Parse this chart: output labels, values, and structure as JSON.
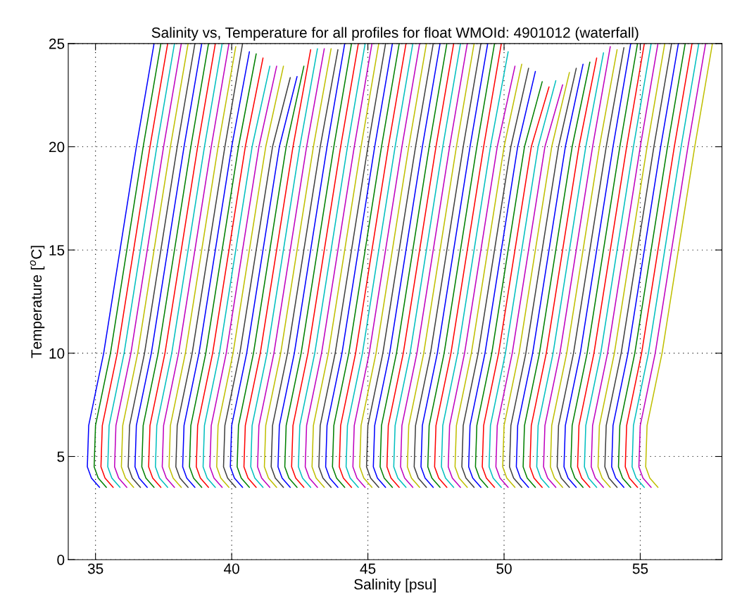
{
  "chart_data": {
    "type": "line",
    "title": "Salinity vs, Temperature for all profiles for float WMOId: 4901012 (waterfall)",
    "xlabel": "Salinity [psu]",
    "ylabel": "Temperature [$^{o}$C]",
    "xlim": [
      34,
      58
    ],
    "xticks": [
      35,
      40,
      45,
      50,
      55
    ],
    "ylim": [
      0,
      25
    ],
    "yticks": [
      0,
      5,
      10,
      15,
      20,
      25
    ],
    "grid": true,
    "line_style": "solid",
    "series": [
      {
        "color": "#0000ff",
        "x": [
          35.15,
          34.85,
          34.7,
          34.75,
          35.3,
          36.5,
          37.15
        ],
        "values": [
          3.5,
          3.95,
          4.5,
          6.5,
          10,
          20,
          25
        ]
      },
      {
        "color": "#008000",
        "x": [
          35.4,
          35.1,
          34.95,
          35,
          35.55,
          36.75,
          37.4
        ],
        "values": [
          3.5,
          3.95,
          4.5,
          6.5,
          10,
          20,
          25
        ]
      },
      {
        "color": "#ff0000",
        "x": [
          35.65,
          35.35,
          35.2,
          35.25,
          35.8,
          37,
          37.65
        ],
        "values": [
          3.5,
          3.95,
          4.5,
          6.5,
          10,
          20,
          25
        ]
      },
      {
        "color": "#00bfbf",
        "x": [
          35.9,
          35.6,
          35.45,
          35.5,
          36.05,
          37.25,
          37.9
        ],
        "values": [
          3.5,
          3.95,
          4.5,
          6.5,
          10,
          20,
          25
        ]
      },
      {
        "color": "#bf00bf",
        "x": [
          36.15,
          35.85,
          35.7,
          35.75,
          36.3,
          37.5,
          38.15
        ],
        "values": [
          3.5,
          3.95,
          4.5,
          6.5,
          10,
          20,
          25
        ]
      },
      {
        "color": "#bfbf00",
        "x": [
          36.4,
          36.1,
          35.95,
          36,
          36.55,
          37.75,
          38.4
        ],
        "values": [
          3.5,
          3.95,
          4.5,
          6.5,
          10,
          20,
          25
        ]
      },
      {
        "color": "#404040",
        "x": [
          36.65,
          36.35,
          36.2,
          36.25,
          36.8,
          38,
          38.65
        ],
        "values": [
          3.5,
          3.95,
          4.5,
          6.5,
          10,
          20,
          25
        ]
      },
      {
        "color": "#0000ff",
        "x": [
          36.9,
          36.6,
          36.45,
          36.5,
          37.05,
          38.25,
          38.9
        ],
        "values": [
          3.5,
          3.95,
          4.5,
          6.5,
          10,
          20,
          25
        ]
      },
      {
        "color": "#008000",
        "x": [
          37.15,
          36.85,
          36.7,
          36.75,
          37.3,
          38.5,
          39.15
        ],
        "values": [
          3.5,
          3.95,
          4.5,
          6.5,
          10,
          20,
          25
        ]
      },
      {
        "color": "#ff0000",
        "x": [
          37.4,
          37.1,
          36.95,
          37,
          37.55,
          38.75,
          39.4
        ],
        "values": [
          3.5,
          3.95,
          4.5,
          6.5,
          10,
          20,
          25
        ]
      },
      {
        "color": "#00bfbf",
        "x": [
          37.65,
          37.35,
          37.2,
          37.25,
          37.8,
          39,
          39.65
        ],
        "values": [
          3.5,
          3.95,
          4.5,
          6.5,
          10,
          20,
          25
        ]
      },
      {
        "color": "#bf00bf",
        "x": [
          37.9,
          37.6,
          37.45,
          37.5,
          38.05,
          39.25,
          39.9
        ],
        "values": [
          3.5,
          3.95,
          4.5,
          6.5,
          10,
          20,
          25
        ]
      },
      {
        "color": "#bfbf00",
        "x": [
          38.15,
          37.85,
          37.7,
          37.75,
          38.3,
          39.5,
          40.15
        ],
        "values": [
          3.5,
          3.95,
          4.5,
          6.5,
          10,
          20,
          24.85
        ]
      },
      {
        "color": "#404040",
        "x": [
          38.4,
          38.1,
          37.95,
          38,
          38.55,
          39.75,
          40.4
        ],
        "values": [
          3.5,
          3.95,
          4.5,
          6.5,
          10,
          20,
          25
        ]
      },
      {
        "color": "#0000ff",
        "x": [
          38.65,
          38.35,
          38.2,
          38.25,
          38.8,
          40,
          40.65
        ],
        "values": [
          3.5,
          3.95,
          4.5,
          6.5,
          10,
          20,
          24.6
        ]
      },
      {
        "color": "#008000",
        "x": [
          38.9,
          38.6,
          38.45,
          38.5,
          39.05,
          40.25,
          40.9
        ],
        "values": [
          3.5,
          3.95,
          4.5,
          6.5,
          10,
          20,
          24.5
        ]
      },
      {
        "color": "#ff0000",
        "x": [
          39.15,
          38.85,
          38.7,
          38.75,
          39.3,
          40.5,
          41.15
        ],
        "values": [
          3.5,
          3.95,
          4.5,
          6.5,
          10,
          20,
          24.3
        ]
      },
      {
        "color": "#00bfbf",
        "x": [
          39.4,
          39.1,
          38.95,
          39,
          39.55,
          40.75,
          41.4
        ],
        "values": [
          3.5,
          3.95,
          4.5,
          6.5,
          10,
          20,
          23.9
        ]
      },
      {
        "color": "#bf00bf",
        "x": [
          39.65,
          39.35,
          39.2,
          39.25,
          39.8,
          41,
          41.65
        ],
        "values": [
          3.5,
          3.95,
          4.5,
          6.5,
          10,
          20,
          23.9
        ]
      },
      {
        "color": "#bfbf00",
        "x": [
          39.9,
          39.6,
          39.45,
          39.5,
          40.05,
          41.25,
          41.9
        ],
        "values": [
          3.5,
          3.95,
          4.5,
          6.5,
          10,
          20,
          23.9
        ]
      },
      {
        "color": "#404040",
        "x": [
          40.15,
          39.85,
          39.7,
          39.75,
          40.3,
          41.5,
          42.15
        ],
        "values": [
          3.5,
          3.95,
          4.5,
          6.5,
          10,
          20,
          23.35
        ]
      },
      {
        "color": "#0000ff",
        "x": [
          40.4,
          40.1,
          39.95,
          40,
          40.55,
          41.75,
          42.4
        ],
        "values": [
          3.5,
          3.95,
          4.5,
          6.5,
          10,
          20,
          23.4
        ]
      },
      {
        "color": "#008000",
        "x": [
          40.65,
          40.35,
          40.2,
          40.25,
          40.8,
          42,
          42.65
        ],
        "values": [
          3.5,
          3.95,
          4.5,
          6.5,
          10,
          20,
          23.9
        ]
      },
      {
        "color": "#ff0000",
        "x": [
          40.9,
          40.6,
          40.45,
          40.5,
          41.05,
          42.25,
          42.9
        ],
        "values": [
          3.5,
          3.95,
          4.5,
          6.5,
          10,
          20,
          24.7
        ]
      },
      {
        "color": "#00bfbf",
        "x": [
          41.15,
          40.85,
          40.7,
          40.75,
          41.3,
          42.5,
          43.15
        ],
        "values": [
          3.5,
          3.95,
          4.5,
          6.5,
          10,
          20,
          24.75
        ]
      },
      {
        "color": "#bf00bf",
        "x": [
          41.4,
          41.1,
          40.95,
          41,
          41.55,
          42.75,
          43.4
        ],
        "values": [
          3.5,
          3.95,
          4.5,
          6.5,
          10,
          20,
          24.75
        ]
      },
      {
        "color": "#bfbf00",
        "x": [
          41.65,
          41.35,
          41.2,
          41.25,
          41.8,
          43,
          43.65
        ],
        "values": [
          3.5,
          3.95,
          4.5,
          6.5,
          10,
          20,
          24.75
        ]
      },
      {
        "color": "#404040",
        "x": [
          41.9,
          41.6,
          41.45,
          41.5,
          42.05,
          43.25,
          43.9
        ],
        "values": [
          3.5,
          3.95,
          4.5,
          6.5,
          10,
          20,
          24.7
        ]
      },
      {
        "color": "#0000ff",
        "x": [
          42.15,
          41.85,
          41.7,
          41.75,
          42.3,
          43.5,
          44.15
        ],
        "values": [
          3.5,
          3.95,
          4.5,
          6.5,
          10,
          20,
          25
        ]
      },
      {
        "color": "#008000",
        "x": [
          42.4,
          42.1,
          41.95,
          42,
          42.55,
          43.75,
          44.4
        ],
        "values": [
          3.5,
          3.95,
          4.5,
          6.5,
          10,
          20,
          25
        ]
      },
      {
        "color": "#ff0000",
        "x": [
          42.65,
          42.35,
          42.2,
          42.25,
          42.8,
          44,
          44.65
        ],
        "values": [
          3.5,
          3.95,
          4.5,
          6.5,
          10,
          20,
          25
        ]
      },
      {
        "color": "#00bfbf",
        "x": [
          42.9,
          42.6,
          42.45,
          42.5,
          43.05,
          44.25,
          44.9
        ],
        "values": [
          3.5,
          3.95,
          4.5,
          6.5,
          10,
          20,
          25
        ]
      },
      {
        "color": "#bf00bf",
        "x": [
          43.15,
          42.85,
          42.7,
          42.75,
          43.3,
          44.5,
          45.15
        ],
        "values": [
          3.5,
          3.95,
          4.5,
          6.5,
          10,
          20,
          25
        ]
      },
      {
        "color": "#bfbf00",
        "x": [
          43.4,
          43.1,
          42.95,
          43,
          43.55,
          44.75,
          45.4
        ],
        "values": [
          3.5,
          3.95,
          4.5,
          6.5,
          10,
          20,
          25
        ]
      },
      {
        "color": "#404040",
        "x": [
          43.65,
          43.35,
          43.2,
          43.25,
          43.8,
          45,
          45.65
        ],
        "values": [
          3.5,
          3.95,
          4.5,
          6.5,
          10,
          20,
          25
        ]
      },
      {
        "color": "#0000ff",
        "x": [
          43.9,
          43.6,
          43.45,
          43.5,
          44.05,
          45.25,
          45.9
        ],
        "values": [
          3.5,
          3.95,
          4.5,
          6.5,
          10,
          20,
          25
        ]
      },
      {
        "color": "#008000",
        "x": [
          44.15,
          43.85,
          43.7,
          43.75,
          44.3,
          45.5,
          46.15
        ],
        "values": [
          3.5,
          3.95,
          4.5,
          6.5,
          10,
          20,
          25
        ]
      },
      {
        "color": "#ff0000",
        "x": [
          44.4,
          44.1,
          43.95,
          44,
          44.55,
          45.75,
          46.4
        ],
        "values": [
          3.5,
          3.95,
          4.5,
          6.5,
          10,
          20,
          25
        ]
      },
      {
        "color": "#00bfbf",
        "x": [
          44.65,
          44.35,
          44.2,
          44.25,
          44.8,
          46,
          46.65
        ],
        "values": [
          3.5,
          3.95,
          4.5,
          6.5,
          10,
          20,
          25
        ]
      },
      {
        "color": "#bf00bf",
        "x": [
          44.9,
          44.6,
          44.45,
          44.5,
          45.05,
          46.25,
          46.9
        ],
        "values": [
          3.5,
          3.95,
          4.5,
          6.5,
          10,
          20,
          25
        ]
      },
      {
        "color": "#bfbf00",
        "x": [
          45.15,
          44.85,
          44.7,
          44.75,
          45.3,
          46.5,
          47.15
        ],
        "values": [
          3.5,
          3.95,
          4.5,
          6.5,
          10,
          20,
          25
        ]
      },
      {
        "color": "#404040",
        "x": [
          45.4,
          45.1,
          44.95,
          45,
          45.55,
          46.75,
          47.4
        ],
        "values": [
          3.5,
          3.95,
          4.5,
          6.5,
          10,
          20,
          25
        ]
      },
      {
        "color": "#0000ff",
        "x": [
          45.65,
          45.35,
          45.2,
          45.25,
          45.8,
          47,
          47.65
        ],
        "values": [
          3.5,
          3.95,
          4.5,
          6.5,
          10,
          20,
          25
        ]
      },
      {
        "color": "#008000",
        "x": [
          45.9,
          45.6,
          45.45,
          45.5,
          46.05,
          47.25,
          47.9
        ],
        "values": [
          3.5,
          3.95,
          4.5,
          6.5,
          10,
          20,
          25
        ]
      },
      {
        "color": "#ff0000",
        "x": [
          46.15,
          45.85,
          45.7,
          45.75,
          46.3,
          47.5,
          48.15
        ],
        "values": [
          3.5,
          3.95,
          4.5,
          6.5,
          10,
          20,
          25
        ]
      },
      {
        "color": "#00bfbf",
        "x": [
          46.4,
          46.1,
          45.95,
          46,
          46.55,
          47.75,
          48.4
        ],
        "values": [
          3.5,
          3.95,
          4.5,
          6.5,
          10,
          20,
          25
        ]
      },
      {
        "color": "#bf00bf",
        "x": [
          46.65,
          46.35,
          46.2,
          46.25,
          46.8,
          48,
          48.65
        ],
        "values": [
          3.5,
          3.95,
          4.5,
          6.5,
          10,
          20,
          25
        ]
      },
      {
        "color": "#bfbf00",
        "x": [
          46.9,
          46.6,
          46.45,
          46.5,
          47.05,
          48.25,
          48.9
        ],
        "values": [
          3.5,
          3.95,
          4.5,
          6.5,
          10,
          20,
          25
        ]
      },
      {
        "color": "#404040",
        "x": [
          47.15,
          46.85,
          46.7,
          46.75,
          47.3,
          48.5,
          49.15
        ],
        "values": [
          3.5,
          3.95,
          4.5,
          6.5,
          10,
          20,
          25
        ]
      },
      {
        "color": "#0000ff",
        "x": [
          47.4,
          47.1,
          46.95,
          47,
          47.55,
          48.75,
          49.4
        ],
        "values": [
          3.5,
          3.95,
          4.5,
          6.5,
          10,
          20,
          25
        ]
      },
      {
        "color": "#008000",
        "x": [
          47.65,
          47.35,
          47.2,
          47.25,
          47.8,
          49,
          49.65
        ],
        "values": [
          3.5,
          3.95,
          4.5,
          6.5,
          10,
          20,
          25
        ]
      },
      {
        "color": "#ff0000",
        "x": [
          47.9,
          47.6,
          47.45,
          47.5,
          48.05,
          49.25,
          49.9
        ],
        "values": [
          3.5,
          3.95,
          4.5,
          6.5,
          10,
          20,
          25
        ]
      },
      {
        "color": "#00bfbf",
        "x": [
          48.15,
          47.85,
          47.7,
          47.75,
          48.3,
          49.5,
          50.15
        ],
        "values": [
          3.5,
          3.95,
          4.5,
          6.5,
          10,
          20,
          24.6
        ]
      },
      {
        "color": "#bf00bf",
        "x": [
          48.4,
          48.1,
          47.95,
          48,
          48.55,
          49.75,
          50.4
        ],
        "values": [
          3.5,
          3.95,
          4.5,
          6.5,
          10,
          20,
          23.9
        ]
      },
      {
        "color": "#bfbf00",
        "x": [
          48.65,
          48.35,
          48.2,
          48.25,
          48.8,
          50,
          50.65
        ],
        "values": [
          3.5,
          3.95,
          4.5,
          6.5,
          10,
          20,
          24
        ]
      },
      {
        "color": "#404040",
        "x": [
          48.9,
          48.6,
          48.45,
          48.5,
          49.05,
          50.25,
          50.9
        ],
        "values": [
          3.5,
          3.95,
          4.5,
          6.5,
          10,
          20,
          23.8
        ]
      },
      {
        "color": "#0000ff",
        "x": [
          49.15,
          48.85,
          48.7,
          48.75,
          49.3,
          50.5,
          51.15
        ],
        "values": [
          3.5,
          3.95,
          4.5,
          6.5,
          10,
          20,
          23.65
        ]
      },
      {
        "color": "#008000",
        "x": [
          49.4,
          49.1,
          48.95,
          49,
          49.55,
          50.75,
          51.4
        ],
        "values": [
          3.5,
          3.95,
          4.5,
          6.5,
          10,
          20,
          23.15
        ]
      },
      {
        "color": "#ff0000",
        "x": [
          49.65,
          49.35,
          49.2,
          49.25,
          49.8,
          51,
          51.65
        ],
        "values": [
          3.5,
          3.95,
          4.5,
          6.5,
          10,
          20,
          22.9
        ]
      },
      {
        "color": "#00bfbf",
        "x": [
          49.9,
          49.6,
          49.45,
          49.5,
          50.05,
          51.25,
          51.9
        ],
        "values": [
          3.5,
          3.95,
          4.5,
          6.5,
          10,
          20,
          23.2
        ]
      },
      {
        "color": "#bf00bf",
        "x": [
          50.15,
          49.85,
          49.7,
          49.75,
          50.3,
          51.5,
          52.15
        ],
        "values": [
          3.5,
          3.95,
          4.5,
          6.5,
          10,
          20,
          23
        ]
      },
      {
        "color": "#bfbf00",
        "x": [
          50.4,
          50.1,
          49.95,
          50,
          50.55,
          51.75,
          52.4
        ],
        "values": [
          3.5,
          3.95,
          4.5,
          6.5,
          10,
          20,
          23.6
        ]
      },
      {
        "color": "#404040",
        "x": [
          50.65,
          50.35,
          50.2,
          50.25,
          50.8,
          52,
          52.65
        ],
        "values": [
          3.5,
          3.95,
          4.5,
          6.5,
          10,
          20,
          23.8
        ]
      },
      {
        "color": "#0000ff",
        "x": [
          50.9,
          50.6,
          50.45,
          50.5,
          51.05,
          52.25,
          52.9
        ],
        "values": [
          3.5,
          3.95,
          4.5,
          6.5,
          10,
          20,
          24
        ]
      },
      {
        "color": "#008000",
        "x": [
          51.15,
          50.85,
          50.7,
          50.75,
          51.3,
          52.5,
          53.15
        ],
        "values": [
          3.5,
          3.95,
          4.5,
          6.5,
          10,
          20,
          24.1
        ]
      },
      {
        "color": "#ff0000",
        "x": [
          51.4,
          51.1,
          50.95,
          51,
          51.55,
          52.75,
          53.4
        ],
        "values": [
          3.5,
          3.95,
          4.5,
          6.5,
          10,
          20,
          24.3
        ]
      },
      {
        "color": "#00bfbf",
        "x": [
          51.65,
          51.35,
          51.2,
          51.25,
          51.8,
          53,
          53.65
        ],
        "values": [
          3.5,
          3.95,
          4.5,
          6.5,
          10,
          20,
          24.55
        ]
      },
      {
        "color": "#bf00bf",
        "x": [
          51.9,
          51.6,
          51.45,
          51.5,
          52.05,
          53.25,
          53.9
        ],
        "values": [
          3.5,
          3.95,
          4.5,
          6.5,
          10,
          20,
          24.85
        ]
      },
      {
        "color": "#bfbf00",
        "x": [
          52.15,
          51.85,
          51.7,
          51.75,
          52.3,
          53.5,
          54.15
        ],
        "values": [
          3.5,
          3.95,
          4.5,
          6.5,
          10,
          20,
          24.7
        ]
      },
      {
        "color": "#404040",
        "x": [
          52.4,
          52.1,
          51.95,
          52,
          52.55,
          53.75,
          54.4
        ],
        "values": [
          3.5,
          3.95,
          4.5,
          6.5,
          10,
          20,
          24.8
        ]
      },
      {
        "color": "#0000ff",
        "x": [
          52.65,
          52.35,
          52.2,
          52.25,
          52.8,
          54,
          54.65
        ],
        "values": [
          3.5,
          3.95,
          4.5,
          6.5,
          10,
          20,
          25
        ]
      },
      {
        "color": "#008000",
        "x": [
          52.9,
          52.6,
          52.45,
          52.5,
          53.05,
          54.25,
          54.9
        ],
        "values": [
          3.5,
          3.95,
          4.5,
          6.5,
          10,
          20,
          25
        ]
      },
      {
        "color": "#ff0000",
        "x": [
          53.15,
          52.85,
          52.7,
          52.75,
          53.3,
          54.5,
          55.15
        ],
        "values": [
          3.5,
          3.95,
          4.5,
          6.5,
          10,
          20,
          25
        ]
      },
      {
        "color": "#00bfbf",
        "x": [
          53.4,
          53.1,
          52.95,
          53,
          53.55,
          54.75,
          55.4
        ],
        "values": [
          3.5,
          3.95,
          4.5,
          6.5,
          10,
          20,
          25
        ]
      },
      {
        "color": "#bf00bf",
        "x": [
          53.65,
          53.35,
          53.2,
          53.25,
          53.8,
          55,
          55.65
        ],
        "values": [
          3.5,
          3.95,
          4.5,
          6.5,
          10,
          20,
          25
        ]
      },
      {
        "color": "#bfbf00",
        "x": [
          53.9,
          53.6,
          53.45,
          53.5,
          54.05,
          55.25,
          55.9
        ],
        "values": [
          3.5,
          3.95,
          4.5,
          6.5,
          10,
          20,
          25
        ]
      },
      {
        "color": "#404040",
        "x": [
          54.15,
          53.85,
          53.7,
          53.75,
          54.3,
          55.5,
          56.15
        ],
        "values": [
          3.5,
          3.95,
          4.5,
          6.5,
          10,
          20,
          25
        ]
      },
      {
        "color": "#0000ff",
        "x": [
          54.4,
          54.1,
          53.95,
          54,
          54.55,
          55.75,
          56.4
        ],
        "values": [
          3.5,
          3.95,
          4.5,
          6.5,
          10,
          20,
          25
        ]
      },
      {
        "color": "#008000",
        "x": [
          54.65,
          54.35,
          54.2,
          54.25,
          54.8,
          56,
          56.65
        ],
        "values": [
          3.5,
          3.95,
          4.5,
          6.5,
          10,
          20,
          25
        ]
      },
      {
        "color": "#ff0000",
        "x": [
          54.9,
          54.6,
          54.45,
          54.5,
          55.05,
          56.25,
          56.9
        ],
        "values": [
          3.5,
          3.95,
          4.5,
          6.5,
          10,
          20,
          25
        ]
      },
      {
        "color": "#00bfbf",
        "x": [
          55.15,
          54.85,
          54.7,
          54.75,
          55.3,
          56.5,
          57.15
        ],
        "values": [
          3.5,
          3.95,
          4.5,
          6.5,
          10,
          20,
          25
        ]
      },
      {
        "color": "#bf00bf",
        "x": [
          55.4,
          55.1,
          54.95,
          55,
          55.55,
          56.75,
          57.4
        ],
        "values": [
          3.5,
          3.95,
          4.5,
          6.5,
          10,
          20,
          25
        ]
      },
      {
        "color": "#bfbf00",
        "x": [
          55.65,
          55.35,
          55.2,
          55.25,
          55.8,
          57,
          57.65
        ],
        "values": [
          3.5,
          3.95,
          4.5,
          6.5,
          10,
          20,
          25
        ]
      }
    ]
  }
}
